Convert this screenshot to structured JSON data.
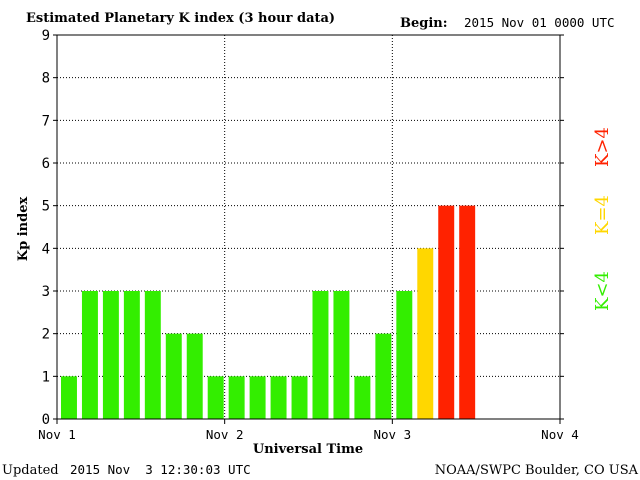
{
  "title": "Estimated Planetary K index (3 hour data)",
  "begin_label": "Begin:",
  "begin_value": "2015 Nov 01 0000 UTC",
  "updated_label": "Updated",
  "updated_value": "2015 Nov  3 12:30:03 UTC",
  "source": "NOAA/SWPC Boulder, CO USA",
  "legend": [
    {
      "label": "K>4",
      "color": "#ff2200"
    },
    {
      "label": "K=4",
      "color": "#ffd700"
    },
    {
      "label": "K<4",
      "color": "#33ee00"
    }
  ],
  "chart_data": {
    "type": "bar",
    "title": "Estimated Planetary K index (3 hour data)",
    "xlabel": "Universal Time",
    "ylabel": "Kp index",
    "ylim": [
      0,
      9
    ],
    "yticks": [
      "0",
      "1",
      "2",
      "3",
      "4",
      "5",
      "6",
      "7",
      "8",
      "9"
    ],
    "xticks": [
      "Nov 1",
      "Nov 2",
      "Nov 3",
      "Nov 4"
    ],
    "x": [
      "2015-11-01 00:00",
      "2015-11-01 03:00",
      "2015-11-01 06:00",
      "2015-11-01 09:00",
      "2015-11-01 12:00",
      "2015-11-01 15:00",
      "2015-11-01 18:00",
      "2015-11-01 21:00",
      "2015-11-02 00:00",
      "2015-11-02 03:00",
      "2015-11-02 06:00",
      "2015-11-02 09:00",
      "2015-11-02 12:00",
      "2015-11-02 15:00",
      "2015-11-02 18:00",
      "2015-11-02 21:00",
      "2015-11-03 00:00",
      "2015-11-03 03:00",
      "2015-11-03 06:00",
      "2015-11-03 09:00"
    ],
    "values": [
      1,
      3,
      3,
      3,
      3,
      2,
      2,
      1,
      1,
      1,
      1,
      1,
      3,
      3,
      1,
      2,
      3,
      4,
      5,
      5
    ],
    "color_rule": {
      "below_4": "#33ee00",
      "equal_4": "#ffd700",
      "above_4": "#ff2200"
    },
    "grid": true,
    "legend_placement": "right"
  }
}
